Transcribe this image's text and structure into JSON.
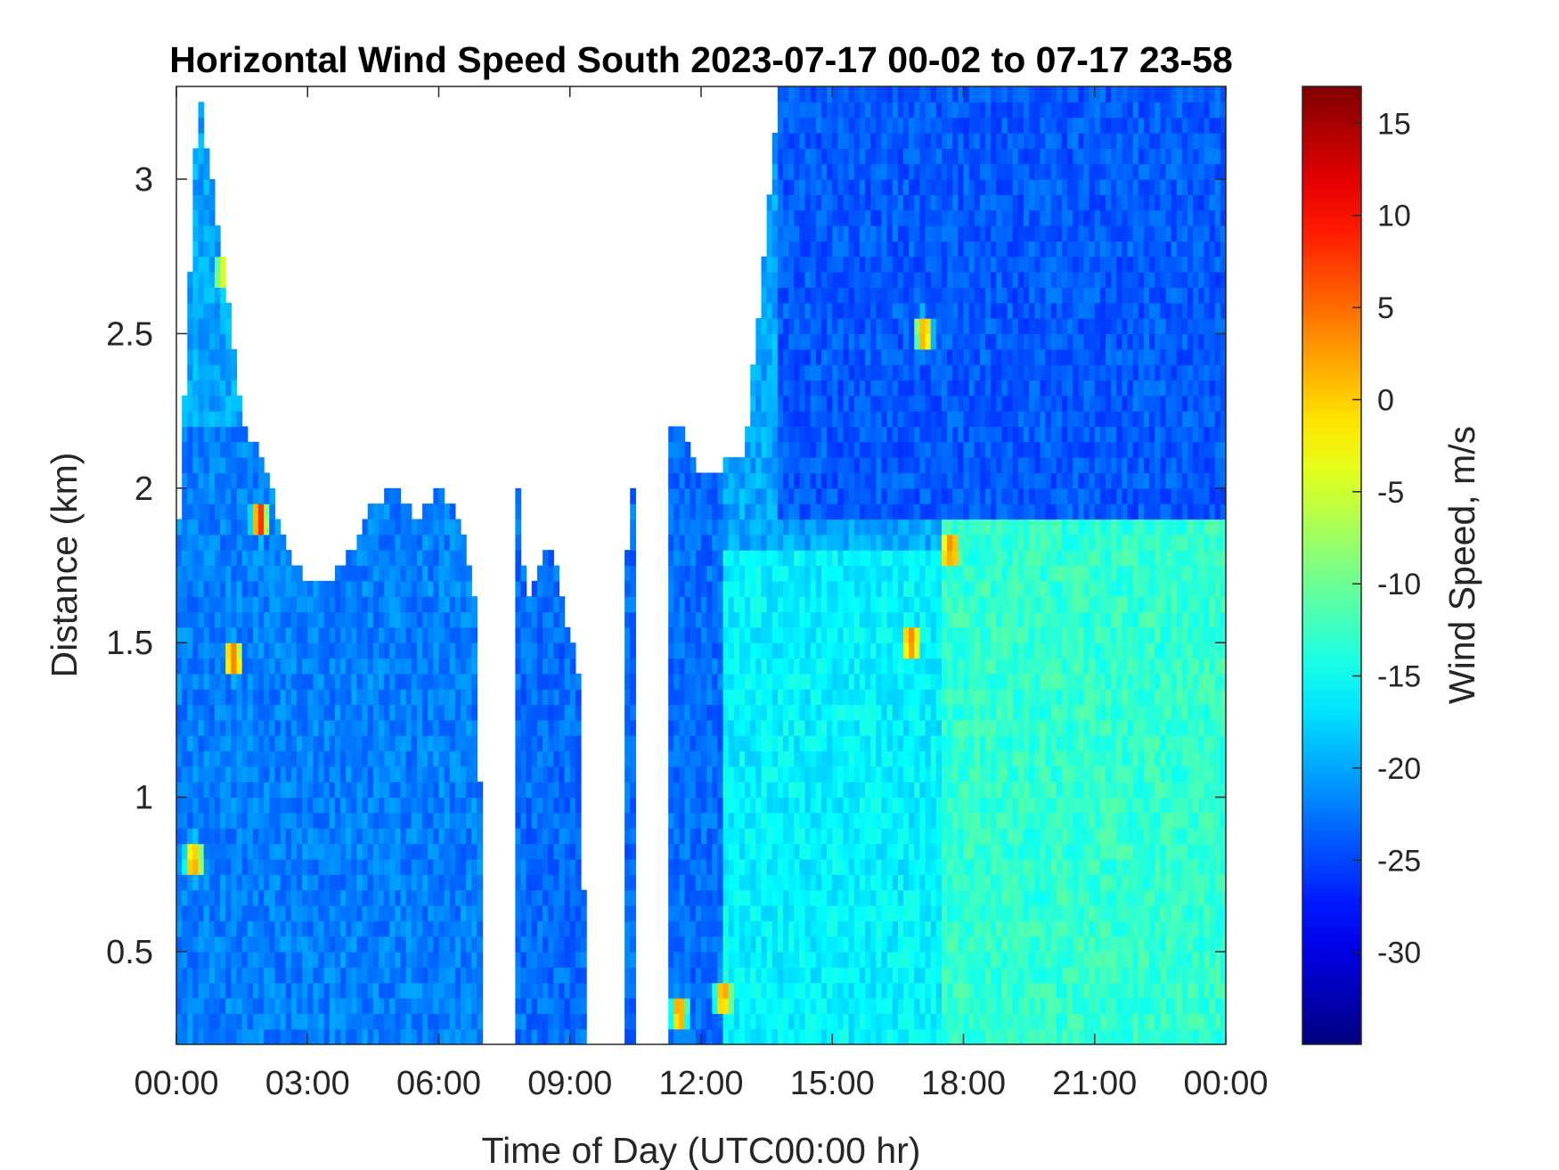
{
  "chart_data": {
    "type": "heatmap",
    "title": "Horizontal Wind Speed South 2023-07-17 00-02 to 07-17 23-58",
    "xlabel": "Time of Day (UTC00:00 hr)",
    "ylabel": "Distance (km)",
    "colorbar_label": "Wind Speed, m/s",
    "colormap": "jet",
    "x_ticks": [
      "00:00",
      "03:00",
      "06:00",
      "09:00",
      "12:00",
      "15:00",
      "18:00",
      "21:00",
      "00:00"
    ],
    "xlim_hours": [
      0,
      24
    ],
    "y_ticks": [
      "0.5",
      "1",
      "1.5",
      "2",
      "2.5",
      "3"
    ],
    "y_tick_values": [
      0.5,
      1,
      1.5,
      2,
      2.5,
      3
    ],
    "ylim": [
      0.2,
      3.3
    ],
    "cbar_ticks": [
      "15",
      "10",
      "5",
      "0",
      "-5",
      "-10",
      "-15",
      "-20",
      "-25",
      "-30"
    ],
    "cbar_tick_values": [
      15,
      10,
      5,
      0,
      -5,
      -10,
      -15,
      -20,
      -25,
      -30
    ],
    "clim": [
      -35,
      17
    ],
    "cell_hours": 0.125,
    "cell_km": 0.05,
    "data_top_km": [
      [
        0,
        1.7
      ],
      [
        0.5,
        3.3
      ],
      [
        1,
        2.8
      ],
      [
        1.5,
        2.2
      ],
      [
        2,
        2.1
      ],
      [
        2.5,
        1.8
      ],
      [
        3,
        1.7
      ],
      [
        3.5,
        1.7
      ],
      [
        4,
        1.8
      ],
      [
        4.5,
        1.95
      ],
      [
        5,
        2.0
      ],
      [
        5.5,
        1.9
      ],
      [
        6,
        2.0
      ],
      [
        6.5,
        1.9
      ],
      [
        6.9,
        1.55
      ],
      [
        7.0,
        0.2
      ],
      [
        7.8,
        2.05
      ],
      [
        8.0,
        1.6
      ],
      [
        8.5,
        1.85
      ],
      [
        9.2,
        1.4
      ],
      [
        9.4,
        0.2
      ],
      [
        10.5,
        2.1
      ],
      [
        11.5,
        2.2
      ],
      [
        12.0,
        2.05
      ],
      [
        13,
        2.1
      ],
      [
        13.8,
        3.3
      ],
      [
        24,
        3.3
      ]
    ],
    "gaps_hours": [
      [
        6.95,
        7.75
      ],
      [
        9.4,
        10.3
      ],
      [
        10.45,
        11.2
      ]
    ],
    "field_regions": [
      {
        "hours": [
          0,
          7
        ],
        "km": [
          0.2,
          2.2
        ],
        "value": -22
      },
      {
        "hours": [
          7.8,
          12.5
        ],
        "km": [
          0.2,
          2.2
        ],
        "value": -23
      },
      {
        "hours": [
          12.5,
          17.5
        ],
        "km": [
          0.2,
          1.8
        ],
        "value": -16
      },
      {
        "hours": [
          17.5,
          24
        ],
        "km": [
          0.2,
          1.9
        ],
        "value": -13
      },
      {
        "hours": [
          13.8,
          24
        ],
        "km": [
          1.9,
          3.3
        ],
        "value": -24
      }
    ],
    "hot_spots": [
      {
        "hours": 0.4,
        "km": 0.8,
        "value": 5
      },
      {
        "hours": 1.3,
        "km": 1.45,
        "value": 8
      },
      {
        "hours": 1.9,
        "km": 1.9,
        "value": 10
      },
      {
        "hours": 1.1,
        "km": 2.7,
        "value": 0
      },
      {
        "hours": 10.8,
        "km": 0.3,
        "value": 8
      },
      {
        "hours": 11.5,
        "km": 0.3,
        "value": 5
      },
      {
        "hours": 12.5,
        "km": 0.35,
        "value": 3
      },
      {
        "hours": 17.1,
        "km": 2.5,
        "value": 5
      },
      {
        "hours": 17.7,
        "km": 1.8,
        "value": 5
      },
      {
        "hours": 16.8,
        "km": 1.5,
        "value": 5
      }
    ]
  }
}
